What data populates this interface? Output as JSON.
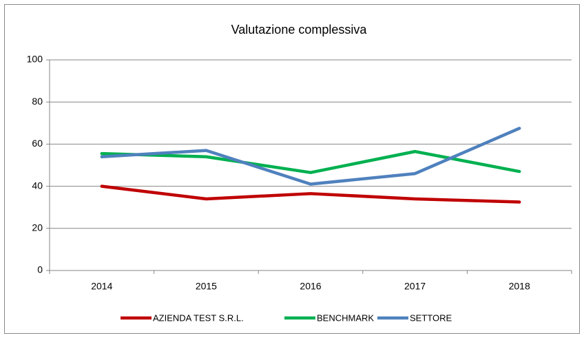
{
  "chart_data": {
    "type": "line",
    "title": "Valutazione complessiva",
    "categories": [
      "2014",
      "2015",
      "2016",
      "2017",
      "2018"
    ],
    "series": [
      {
        "name": "AZIENDA TEST S.R.L.",
        "color": "#c00000",
        "values": [
          40,
          34,
          36.5,
          34,
          32.5
        ]
      },
      {
        "name": "BENCHMARK",
        "color": "#00b050",
        "values": [
          55.5,
          54,
          46.5,
          56.5,
          47
        ]
      },
      {
        "name": "SETTORE",
        "color": "#4f81bd",
        "values": [
          54,
          57,
          41,
          46,
          67.5
        ]
      }
    ],
    "ylim": [
      0,
      100
    ],
    "yticks": [
      0,
      20,
      40,
      60,
      80,
      100
    ],
    "grid": true,
    "legend": "bottom"
  }
}
